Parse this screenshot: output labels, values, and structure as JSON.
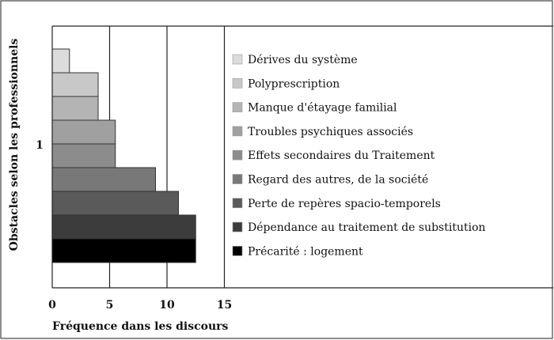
{
  "chart_data": {
    "type": "bar",
    "orientation": "horizontal",
    "stacked_series_in_single_category": true,
    "categories": [
      "1"
    ],
    "xlabel": "Fréquence dans les discours",
    "ylabel": "Obstacles selon les professionnels",
    "xlim": [
      0,
      15
    ],
    "xticks": [
      "0",
      "5",
      "10",
      "15"
    ],
    "grid": true,
    "legend_position": "right, inside plot",
    "series": [
      {
        "name": "Dérives du système",
        "value": 1.5,
        "color": "#dcdcdc"
      },
      {
        "name": "Polyprescription",
        "value": 4,
        "color": "#c8c8c8"
      },
      {
        "name": "Manque d'étayage familial",
        "value": 4,
        "color": "#b4b4b4"
      },
      {
        "name": "Troubles psychiques associés",
        "value": 5.5,
        "color": "#a0a0a0"
      },
      {
        "name": "Effets secondaires du Traitement",
        "value": 5.5,
        "color": "#8c8c8c"
      },
      {
        "name": "Regard des autres, de la société",
        "value": 9,
        "color": "#787878"
      },
      {
        "name": "Perte de repères spacio-temporels",
        "value": 11,
        "color": "#5a5a5a"
      },
      {
        "name": "Dépendance au traitement de substitution",
        "value": 12.5,
        "color": "#3c3c3c"
      },
      {
        "name": "Précarité : logement",
        "value": 12.5,
        "color": "#000000"
      }
    ]
  }
}
